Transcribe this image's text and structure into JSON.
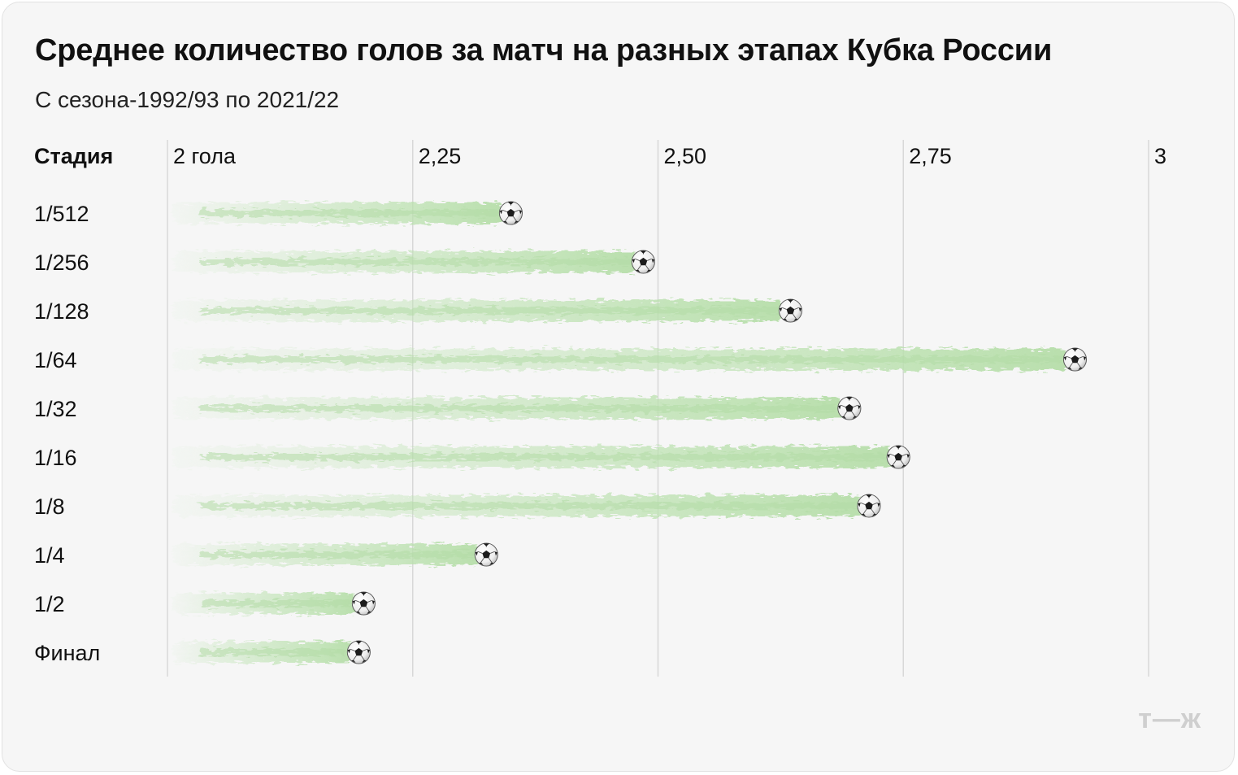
{
  "chart_data": {
    "type": "bar",
    "title": "Среднее количество голов за матч на разных этапах Кубка России",
    "subtitle": "С сезона-1992/93 по 2021/22",
    "category_header": "Стадия",
    "xlim": [
      2,
      3
    ],
    "x_ticks": [
      {
        "value": 2,
        "label": "2 гола"
      },
      {
        "value": 2.25,
        "label": "2,25"
      },
      {
        "value": 2.5,
        "label": "2,50"
      },
      {
        "value": 2.75,
        "label": "2,75"
      },
      {
        "value": 3,
        "label": "3"
      }
    ],
    "categories": [
      "1/512",
      "1/256",
      "1/128",
      "1/64",
      "1/32",
      "1/16",
      "1/8",
      "1/4",
      "1/2",
      "Финал"
    ],
    "values": [
      2.35,
      2.485,
      2.635,
      2.925,
      2.695,
      2.745,
      2.715,
      2.325,
      2.2,
      2.195
    ],
    "grid": true,
    "bar_style": "green smoke trail ending in a soccer ball",
    "bar_color": "#bfe3b4",
    "marker_icon": "soccer-ball-icon"
  },
  "footer": {
    "logo": "т—ж"
  },
  "colors": {
    "background": "#f6f6f6",
    "grid": "#d8d8d8",
    "trail": "#bfe3b4",
    "logo": "#cfcfcf"
  }
}
